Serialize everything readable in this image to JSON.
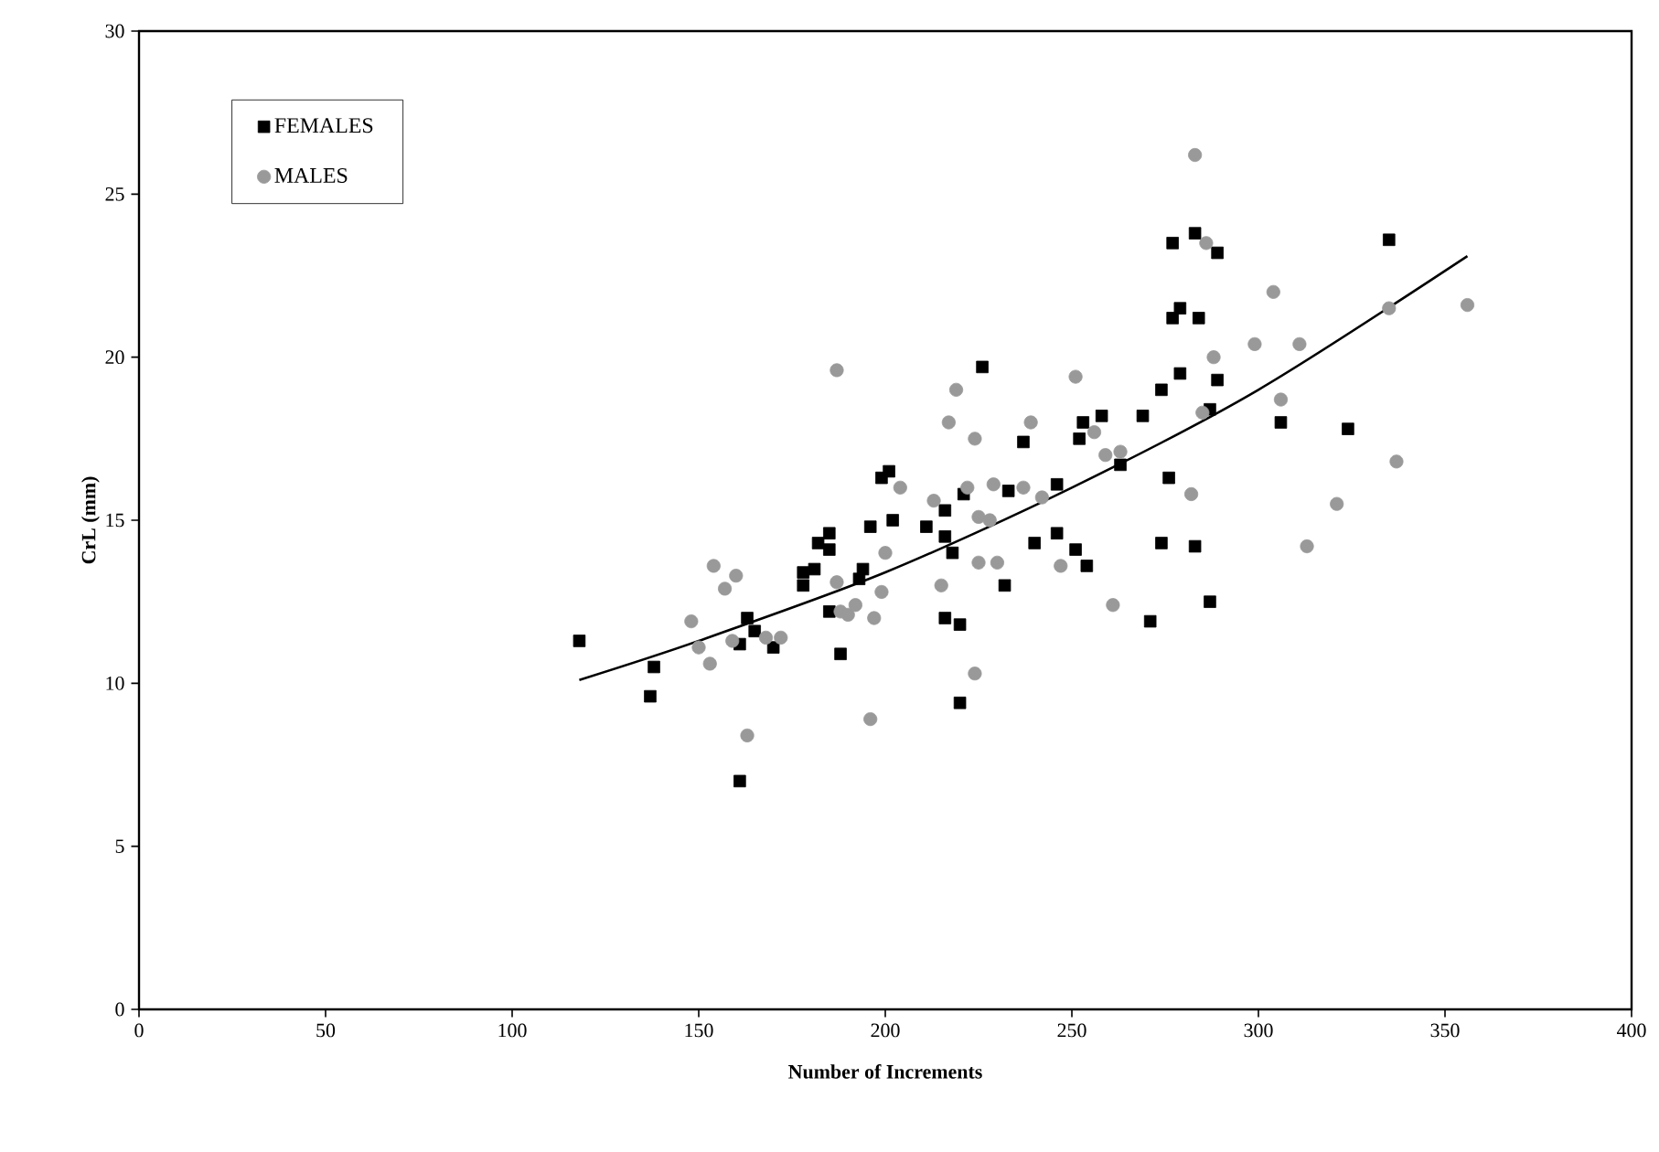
{
  "chart_data": {
    "type": "scatter",
    "xlabel": "Number of Increments",
    "ylabel": "CrL (mm)",
    "xlim": [
      0,
      400
    ],
    "ylim": [
      0,
      30
    ],
    "xticks": [
      0,
      50,
      100,
      150,
      200,
      250,
      300,
      350,
      400
    ],
    "yticks": [
      0,
      5,
      10,
      15,
      20,
      25,
      30
    ],
    "grid": false,
    "legend": "top left",
    "series": [
      {
        "name": "FEMALES",
        "color": "#000000",
        "marker": "square",
        "x": [
          118,
          138,
          137,
          161,
          161,
          163,
          165,
          170,
          178,
          178,
          181,
          182,
          185,
          185,
          185,
          188,
          193,
          194,
          196,
          199,
          201,
          202,
          211,
          216,
          216,
          216,
          218,
          220,
          220,
          221,
          226,
          232,
          233,
          237,
          240,
          246,
          246,
          251,
          252,
          253,
          254,
          258,
          263,
          269,
          271,
          274,
          274,
          276,
          277,
          277,
          279,
          279,
          283,
          283,
          284,
          287,
          287,
          289,
          289,
          306,
          324,
          335
        ],
        "values": [
          11.3,
          10.5,
          9.6,
          7.0,
          11.2,
          12.0,
          11.6,
          11.1,
          13.4,
          13.0,
          13.5,
          14.3,
          14.1,
          14.6,
          12.2,
          10.9,
          13.2,
          13.5,
          14.8,
          16.3,
          16.5,
          15.0,
          14.8,
          15.3,
          14.5,
          12.0,
          14.0,
          11.8,
          9.4,
          15.8,
          19.7,
          13.0,
          15.9,
          17.4,
          14.3,
          14.6,
          16.1,
          14.1,
          17.5,
          18.0,
          13.6,
          18.2,
          16.7,
          18.2,
          11.9,
          14.3,
          19.0,
          16.3,
          21.2,
          23.5,
          21.5,
          19.5,
          23.8,
          14.2,
          21.2,
          12.5,
          18.4,
          23.2,
          19.3,
          18.0,
          17.8,
          23.6
        ]
      },
      {
        "name": "MALES",
        "color": "#999999",
        "marker": "circle",
        "x": [
          148,
          150,
          153,
          154,
          157,
          159,
          160,
          163,
          168,
          172,
          187,
          187,
          188,
          190,
          192,
          196,
          197,
          199,
          200,
          204,
          213,
          215,
          217,
          219,
          222,
          224,
          224,
          225,
          225,
          228,
          229,
          230,
          237,
          239,
          242,
          247,
          251,
          256,
          259,
          261,
          263,
          282,
          283,
          285,
          286,
          288,
          299,
          304,
          306,
          311,
          313,
          321,
          335,
          337,
          356
        ],
        "values": [
          11.9,
          11.1,
          10.6,
          13.6,
          12.9,
          11.3,
          13.3,
          8.4,
          11.4,
          11.4,
          19.6,
          13.1,
          12.2,
          12.1,
          12.4,
          8.9,
          12.0,
          12.8,
          14.0,
          16.0,
          15.6,
          13.0,
          18.0,
          19.0,
          16.0,
          17.5,
          10.3,
          15.1,
          13.7,
          15.0,
          16.1,
          13.7,
          16.0,
          18.0,
          15.7,
          13.6,
          19.4,
          17.7,
          17.0,
          12.4,
          17.1,
          15.8,
          26.2,
          18.3,
          23.5,
          20.0,
          20.4,
          22.0,
          18.7,
          20.4,
          14.2,
          15.5,
          21.5,
          16.8,
          21.6
        ]
      },
      {
        "type": "line",
        "color": "#000000",
        "marker": "none",
        "line_style": "solid",
        "x": [
          118,
          150,
          200,
          250,
          300,
          356
        ],
        "values": [
          10.1,
          11.3,
          13.4,
          16.0,
          19.0,
          23.1
        ]
      }
    ]
  }
}
